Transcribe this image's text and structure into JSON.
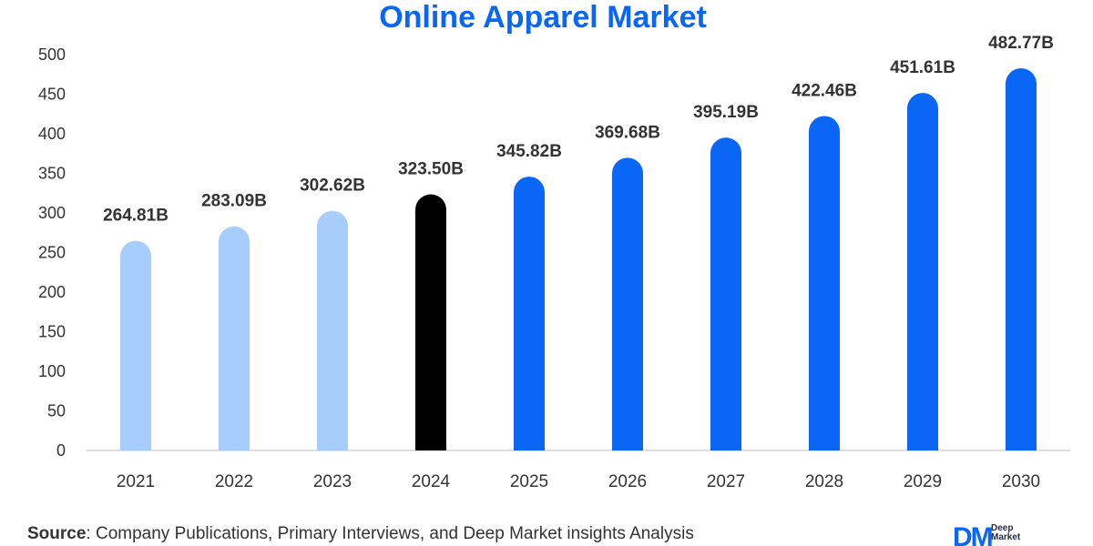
{
  "chart_data": {
    "type": "bar",
    "title": "Online Apparel Market",
    "categories": [
      "2021",
      "2022",
      "2023",
      "2024",
      "2025",
      "2026",
      "2027",
      "2028",
      "2029",
      "2030"
    ],
    "values": [
      264.81,
      283.09,
      302.62,
      323.5,
      345.82,
      369.68,
      395.19,
      422.46,
      451.61,
      482.77
    ],
    "data_labels": [
      "264.81B",
      "283.09B",
      "302.62B",
      "323.50B",
      "345.82B",
      "369.68B",
      "395.19B",
      "422.46B",
      "451.61B",
      "482.77B"
    ],
    "ylim": [
      0,
      500
    ],
    "yticks": [
      0,
      50,
      100,
      150,
      200,
      250,
      300,
      350,
      400,
      450,
      500
    ],
    "xlabel": "",
    "ylabel": "",
    "grid": false,
    "legend": "none",
    "bar_colors": [
      "#a6cdfb",
      "#a6cdfb",
      "#a6cdfb",
      "#000000",
      "#0a66f5",
      "#0a66f5",
      "#0a66f5",
      "#0a66f5",
      "#0a66f5",
      "#0a66f5"
    ]
  },
  "colors": {
    "title": "#0a66f5",
    "axis": "#bfbfbf",
    "text": "#333333"
  },
  "source": {
    "label": "Source",
    "text": ": Company Publications, Primary Interviews, and Deep Market insights Analysis"
  },
  "logo": {
    "mark": "DM",
    "line1": "Deep",
    "line2": "Market"
  }
}
